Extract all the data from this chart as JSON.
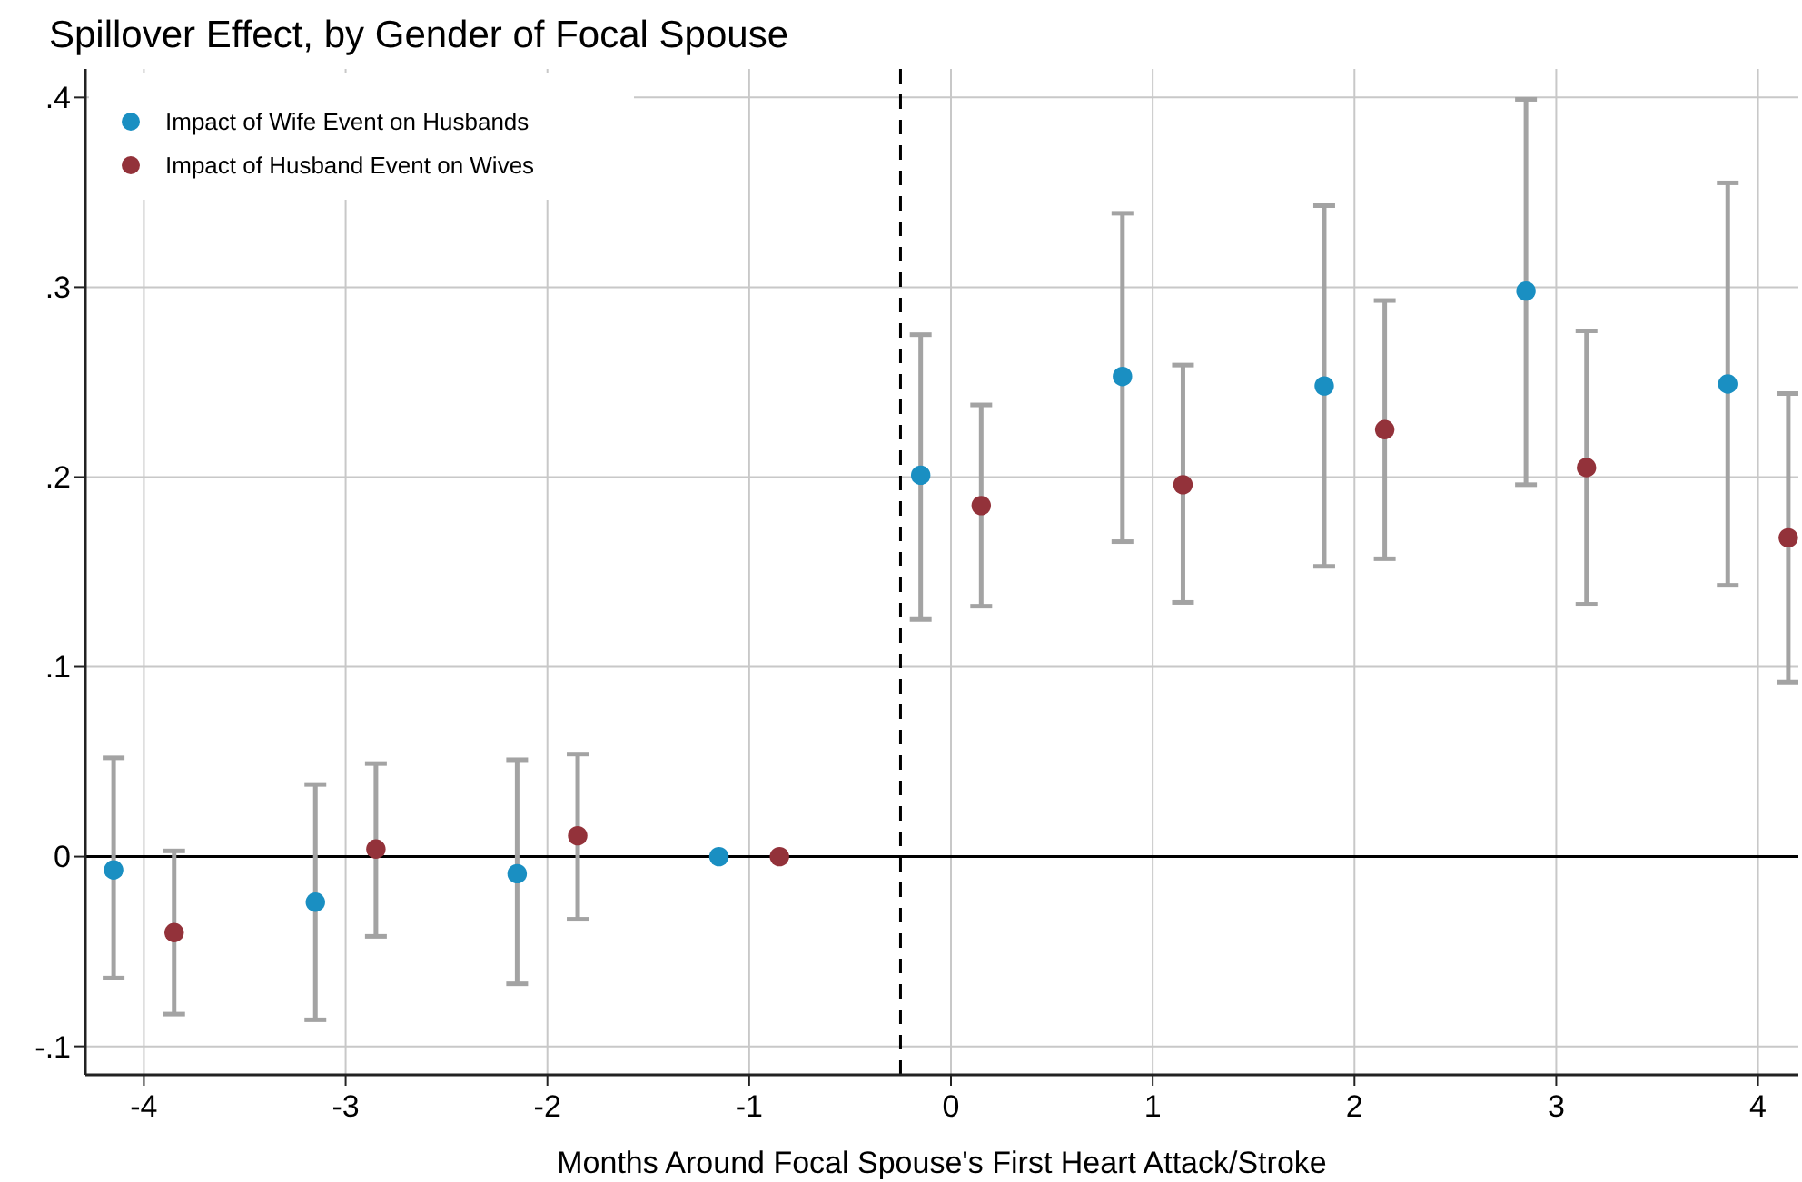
{
  "chart_data": {
    "type": "scatter",
    "title": "Spillover Effect, by Gender of Focal Spouse",
    "xlabel": "Months Around Focal Spouse's First Heart Attack/Stroke",
    "xlim": [
      -4.29,
      4.2
    ],
    "xticks": [
      -4,
      -3,
      -2,
      -1,
      0,
      1,
      2,
      3,
      4
    ],
    "ylim": [
      -0.115,
      0.415
    ],
    "yticks": [
      {
        "value": -0.1,
        "label": "-.1"
      },
      {
        "value": 0,
        "label": "0"
      },
      {
        "value": 0.1,
        "label": ".1"
      },
      {
        "value": 0.2,
        "label": ".2"
      },
      {
        "value": 0.3,
        "label": ".3"
      },
      {
        "value": 0.4,
        "label": ".4"
      }
    ],
    "grid": true,
    "legend": "top left",
    "marker": "circle",
    "ref_lines": [
      {
        "axis": "y",
        "value": 0,
        "color": "#000000",
        "line_style": "solid"
      },
      {
        "axis": "x",
        "value": -0.25,
        "color": "#000000",
        "line_style": "dashed"
      }
    ],
    "series": [
      {
        "name": "Impact of Wife Event on Husbands",
        "color": "#1a8fc2",
        "x": [
          -4.15,
          -3.15,
          -2.15,
          -1.15,
          -0.15,
          0.85,
          1.85,
          2.85,
          3.85
        ],
        "values": [
          -0.007,
          -0.024,
          -0.009,
          0,
          0.201,
          0.253,
          0.248,
          0.298,
          0.249
        ],
        "errors": [
          [
            -0.064,
            0.052
          ],
          [
            -0.086,
            0.038
          ],
          [
            -0.067,
            0.051
          ],
          null,
          [
            0.125,
            0.275
          ],
          [
            0.166,
            0.339
          ],
          [
            0.153,
            0.343
          ],
          [
            0.196,
            0.399
          ],
          [
            0.143,
            0.355
          ]
        ]
      },
      {
        "name": "Impact of Husband Event on Wives",
        "color": "#93323a",
        "x": [
          -3.85,
          -2.85,
          -1.85,
          -0.85,
          0.15,
          1.15,
          2.15,
          3.15,
          4.15
        ],
        "values": [
          -0.04,
          0.004,
          0.011,
          0,
          0.185,
          0.196,
          0.225,
          0.205,
          0.168
        ],
        "errors": [
          [
            -0.083,
            0.003
          ],
          [
            -0.042,
            0.049
          ],
          [
            -0.033,
            0.054
          ],
          null,
          [
            0.132,
            0.238
          ],
          [
            0.134,
            0.259
          ],
          [
            0.157,
            0.293
          ],
          [
            0.133,
            0.277
          ],
          [
            0.092,
            0.244
          ]
        ]
      }
    ]
  }
}
